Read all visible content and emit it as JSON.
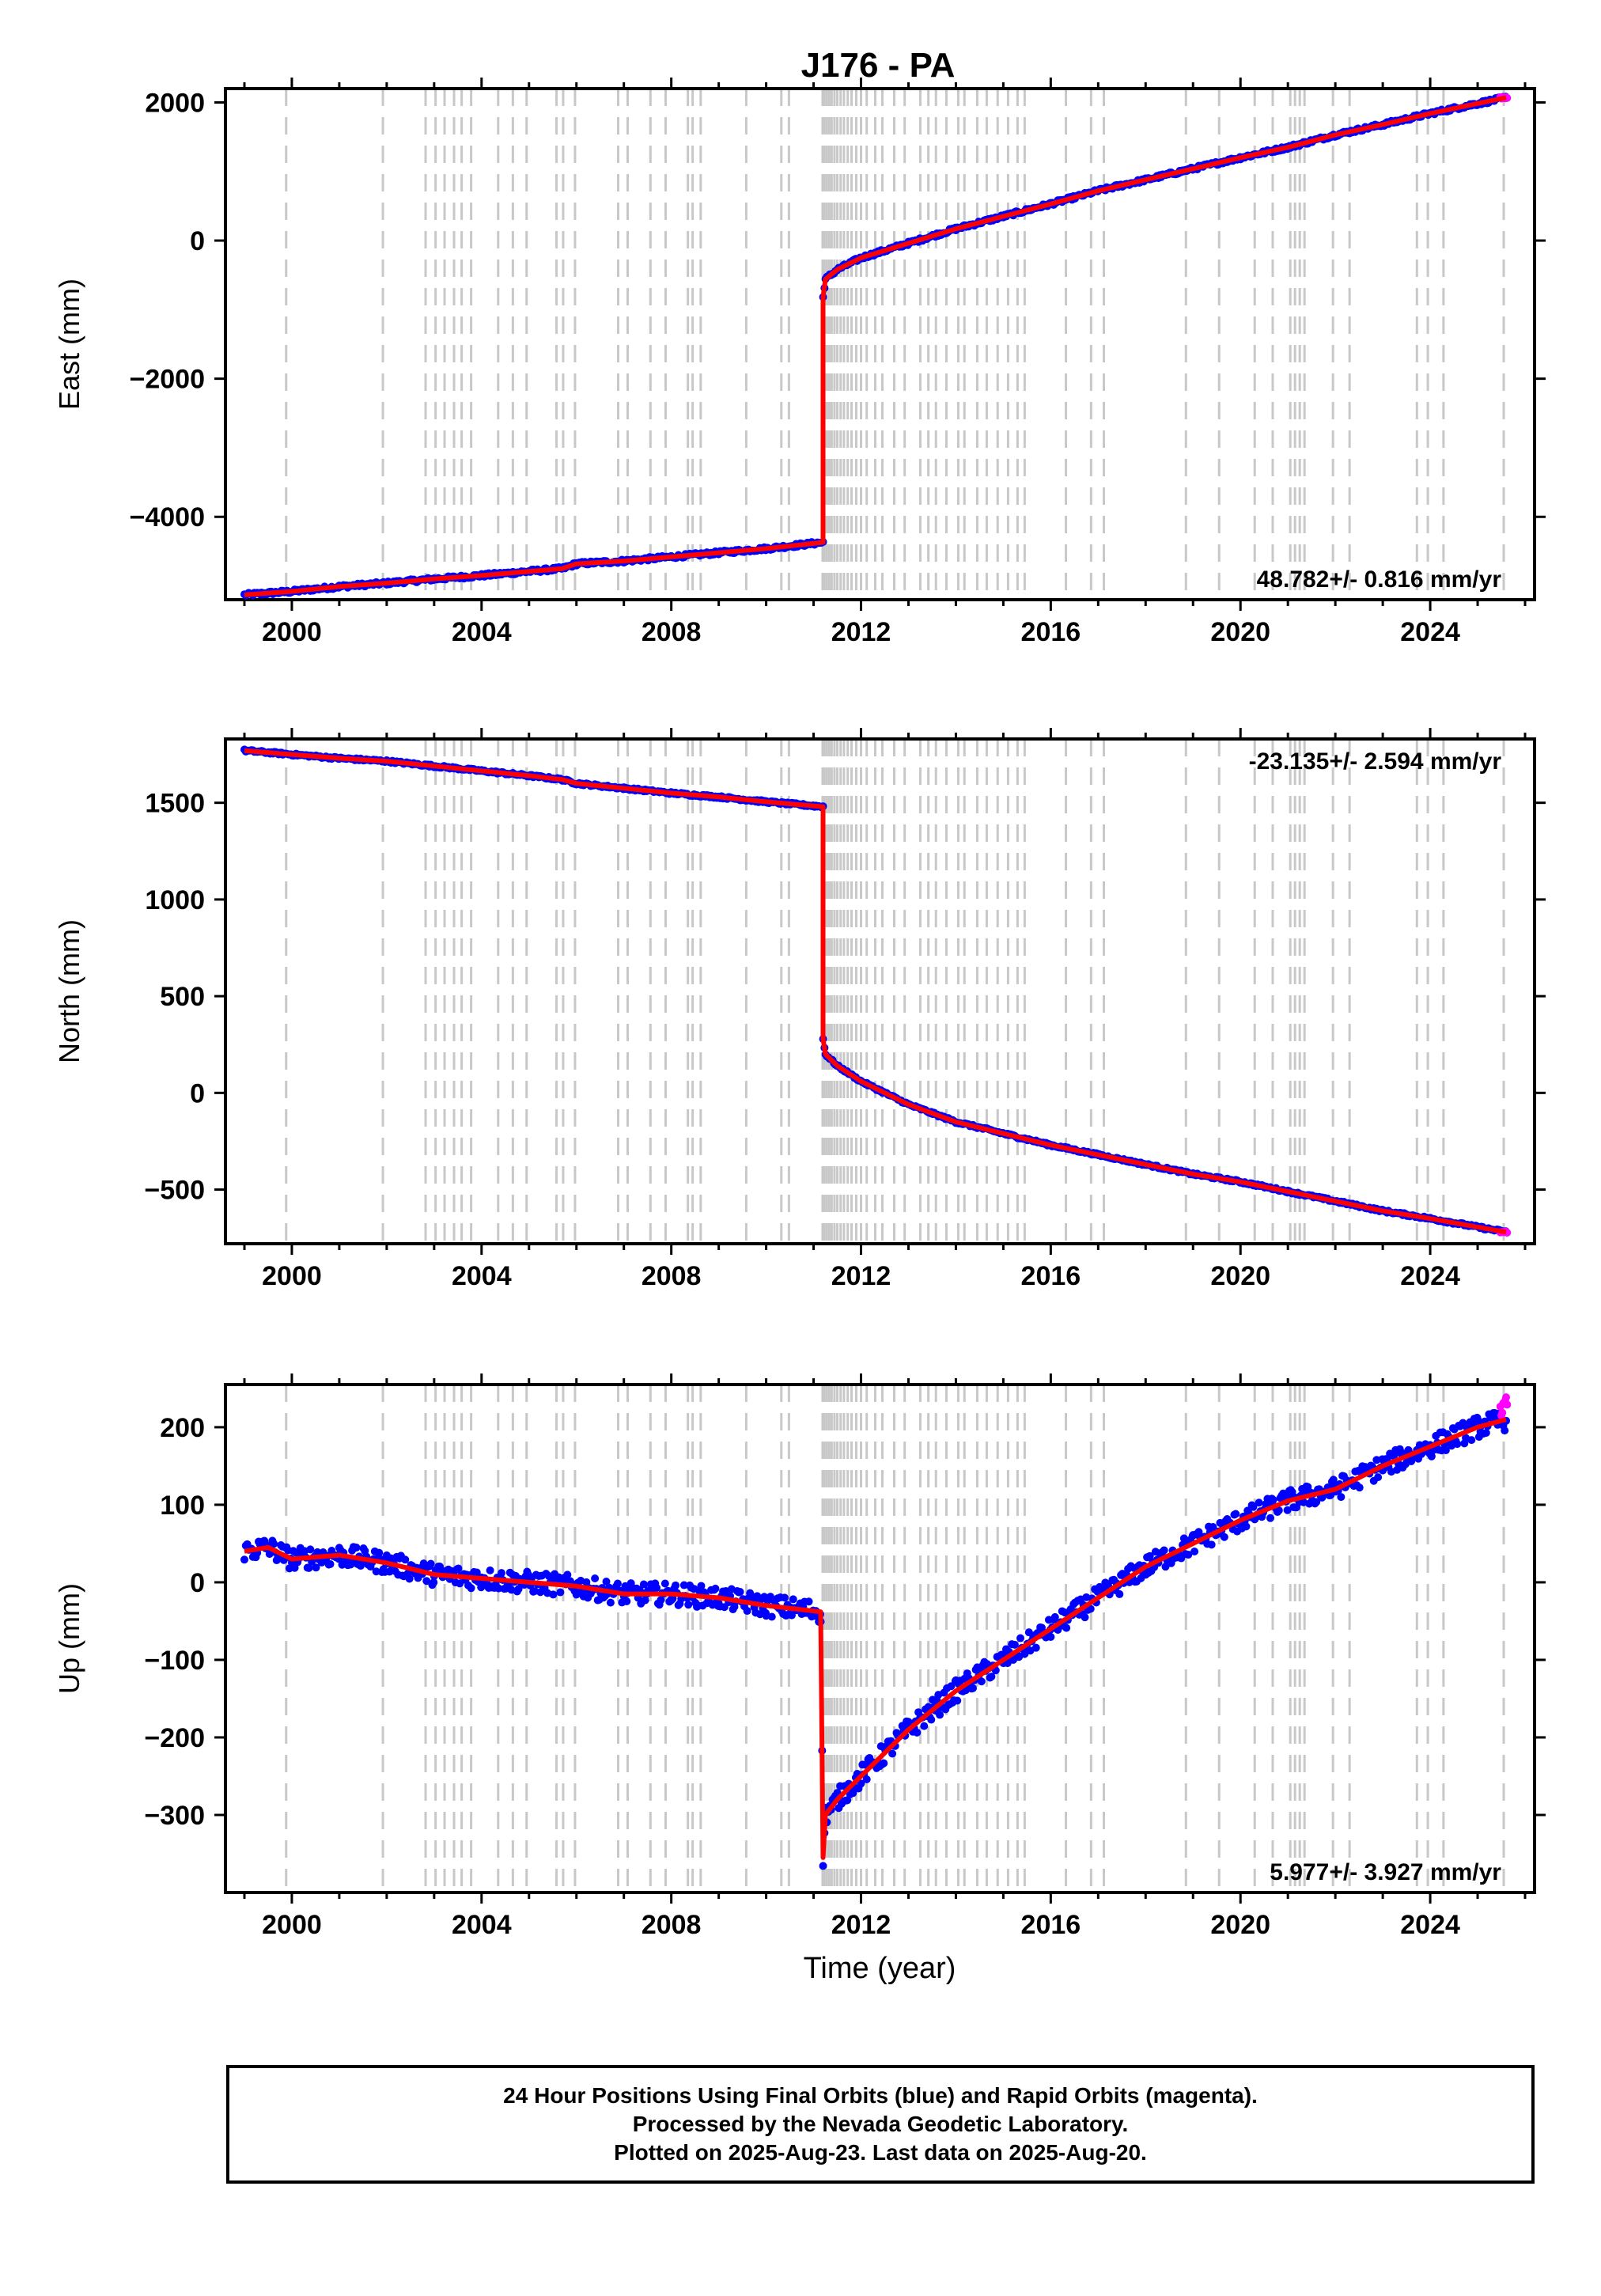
{
  "chart_data": {
    "type": "scatter",
    "title": "J176 - PA",
    "xlabel": "Time (year)",
    "x_tick_labels": [
      "2000",
      "2004",
      "2008",
      "2012",
      "2016",
      "2020",
      "2024"
    ],
    "xlim": [
      1998.6,
      2026.2
    ],
    "grid": "dashed gray vertical lines at equipment/earthquake events",
    "event_lines": [
      1999.88,
      2001.92,
      2002.82,
      2003.03,
      2003.22,
      2003.42,
      2003.58,
      2003.78,
      2004.35,
      2004.66,
      2004.95,
      2005.58,
      2005.72,
      2005.97,
      2006.88,
      2007.08,
      2007.56,
      2007.88,
      2008.35,
      2008.45,
      2008.62,
      2009.58,
      2010.32,
      2010.48,
      2011.19,
      2011.23,
      2011.28,
      2011.33,
      2011.38,
      2011.44,
      2011.5,
      2011.57,
      2011.64,
      2011.72,
      2011.8,
      2011.9,
      2012.0,
      2012.12,
      2012.3,
      2012.45,
      2012.7,
      2012.92,
      2013.25,
      2013.42,
      2013.58,
      2013.8,
      2014.05,
      2014.18,
      2014.45,
      2014.65,
      2014.88,
      2015.1,
      2015.3,
      2015.45,
      2016.32,
      2016.85,
      2017.12,
      2018.85,
      2019.55,
      2020.3,
      2020.68,
      2021.05,
      2021.15,
      2021.25,
      2021.35,
      2021.95,
      2022.3,
      2023.72,
      2023.95,
      2024.28,
      2025.55
    ],
    "panels": [
      {
        "ylabel": "East (mm)",
        "ylim": [
          -5200,
          2200
        ],
        "y_ticks": [
          -4000,
          -2000,
          0,
          2000
        ],
        "rate_label": "48.782+/- 0.816 mm/yr",
        "rate_position": "bottom-right",
        "x": [
          1999.0,
          2000.0,
          2001.0,
          2002.0,
          2003.0,
          2004.0,
          2005.0,
          2005.7,
          2006.0,
          2007.0,
          2008.0,
          2009.0,
          2010.0,
          2011.2,
          2011.2,
          2011.25,
          2011.5,
          2012.0,
          2013.0,
          2014.0,
          2015.0,
          2016.0,
          2017.0,
          2018.0,
          2019.0,
          2020.0,
          2021.0,
          2022.0,
          2023.0,
          2024.0,
          2025.6
        ],
        "y": [
          -5130,
          -5080,
          -5010,
          -4960,
          -4900,
          -4850,
          -4790,
          -4750,
          -4680,
          -4640,
          -4580,
          -4520,
          -4460,
          -4370,
          -820,
          -560,
          -420,
          -250,
          -40,
          170,
          350,
          530,
          720,
          880,
          1040,
          1200,
          1350,
          1530,
          1680,
          1840,
          2070
        ],
        "label_values": [
          2000,
          0,
          -2000,
          -4000
        ]
      },
      {
        "ylabel": "North (mm)",
        "ylim": [
          -780,
          1830
        ],
        "y_ticks": [
          -500,
          0,
          500,
          1000,
          1500
        ],
        "rate_label": "-23.135+/- 2.594 mm/yr",
        "rate_position": "top-right",
        "x": [
          1999.0,
          2000.0,
          2001.0,
          2002.0,
          2003.0,
          2004.0,
          2005.0,
          2005.7,
          2006.0,
          2007.0,
          2008.0,
          2009.0,
          2010.0,
          2011.2,
          2011.2,
          2011.25,
          2011.5,
          2012.0,
          2013.0,
          2014.0,
          2015.0,
          2016.0,
          2017.0,
          2018.0,
          2019.0,
          2020.0,
          2021.0,
          2022.0,
          2023.0,
          2024.0,
          2025.6
        ],
        "y": [
          1770,
          1750,
          1730,
          1715,
          1690,
          1665,
          1640,
          1620,
          1600,
          1575,
          1550,
          1530,
          1505,
          1480,
          280,
          200,
          140,
          60,
          -60,
          -150,
          -210,
          -270,
          -320,
          -370,
          -420,
          -460,
          -510,
          -560,
          -610,
          -650,
          -720
        ]
      },
      {
        "ylabel": "Up (mm)",
        "ylim": [
          -400,
          255
        ],
        "y_ticks": [
          -300,
          -200,
          -100,
          0,
          100,
          200
        ],
        "rate_label": "5.977+/- 3.927 mm/yr",
        "rate_position": "bottom-right",
        "x": [
          1999.0,
          1999.5,
          2000.0,
          2001.0,
          2002.0,
          2003.0,
          2004.0,
          2005.0,
          2006.0,
          2007.0,
          2008.0,
          2009.0,
          2010.0,
          2011.15,
          2011.2,
          2011.25,
          2011.5,
          2012.0,
          2013.0,
          2014.0,
          2015.0,
          2016.0,
          2017.0,
          2018.0,
          2019.0,
          2020.0,
          2021.0,
          2022.0,
          2023.0,
          2024.0,
          2025.0,
          2025.6
        ],
        "y": [
          40,
          45,
          30,
          35,
          25,
          10,
          5,
          0,
          -5,
          -15,
          -15,
          -20,
          -30,
          -38,
          -355,
          -300,
          -280,
          -250,
          -190,
          -140,
          -100,
          -60,
          -20,
          20,
          50,
          80,
          105,
          120,
          150,
          175,
          200,
          210
        ]
      }
    ],
    "series": [
      {
        "name": "Final Orbits",
        "color": "#0000ff"
      },
      {
        "name": "Rapid Orbits",
        "color": "#ff00ff"
      },
      {
        "name": "Model fit",
        "color": "#ff0000"
      }
    ]
  },
  "caption": {
    "line1": "24 Hour Positions Using Final Orbits (blue) and Rapid Orbits (magenta).",
    "line2": "Processed by the Nevada Geodetic Laboratory.",
    "line3": "Plotted on 2025-Aug-23. Last data on 2025-Aug-20."
  }
}
